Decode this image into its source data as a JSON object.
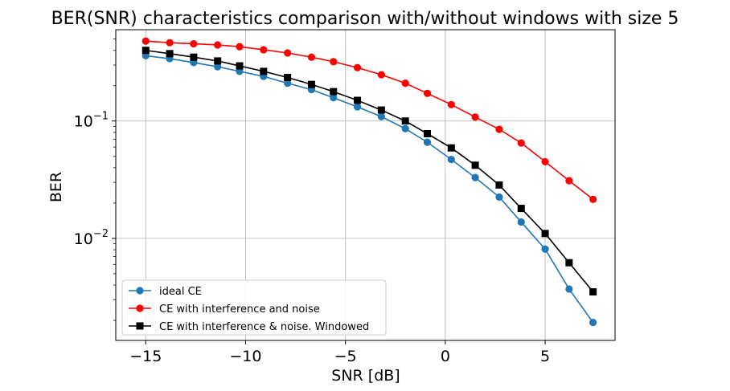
{
  "chart_data": {
    "type": "line",
    "title": "BER(SNR) characteristics comparison with/without windows with size 5",
    "xlabel": "SNR [dB]",
    "ylabel": "BER",
    "xscale": "linear",
    "yscale": "log",
    "xlim": [
      -16.5,
      8.5
    ],
    "ylim": [
      0.00135,
      0.6
    ],
    "grid": true,
    "legend_position": "lower-left",
    "x_ticks": [
      {
        "value": -15,
        "label": "−15"
      },
      {
        "value": -10,
        "label": "−10"
      },
      {
        "value": -5,
        "label": "−5"
      },
      {
        "value": 0,
        "label": "0"
      },
      {
        "value": 5,
        "label": "5"
      }
    ],
    "y_ticks": [
      {
        "value": 0.1,
        "base": "10",
        "exp": "−1"
      },
      {
        "value": 0.01,
        "base": "10",
        "exp": "−2"
      }
    ],
    "x": [
      -15,
      -13.8,
      -12.6,
      -11.4,
      -10.3,
      -9.1,
      -7.9,
      -6.7,
      -5.6,
      -4.4,
      -3.2,
      -2.0,
      -0.9,
      0.3,
      1.5,
      2.7,
      3.8,
      5.0,
      6.2,
      7.4
    ],
    "series": [
      {
        "name": "ideal CE",
        "color": "#1f77b4",
        "marker": "circle",
        "values": [
          0.36,
          0.34,
          0.315,
          0.29,
          0.265,
          0.24,
          0.21,
          0.185,
          0.158,
          0.132,
          0.109,
          0.086,
          0.066,
          0.047,
          0.033,
          0.0225,
          0.0138,
          0.0081,
          0.0037,
          0.00192
        ]
      },
      {
        "name": "CE with interference and noise",
        "color": "#ff0000",
        "marker": "circle",
        "values": [
          0.48,
          0.465,
          0.455,
          0.445,
          0.43,
          0.405,
          0.38,
          0.35,
          0.32,
          0.285,
          0.248,
          0.21,
          0.172,
          0.138,
          0.108,
          0.085,
          0.065,
          0.045,
          0.031,
          0.0215
        ]
      },
      {
        "name": "CE with interference & noise. Windowed",
        "color": "#000000",
        "marker": "square",
        "values": [
          0.4,
          0.375,
          0.35,
          0.325,
          0.295,
          0.265,
          0.235,
          0.205,
          0.178,
          0.15,
          0.124,
          0.1,
          0.078,
          0.059,
          0.042,
          0.0285,
          0.018,
          0.011,
          0.0062,
          0.0035
        ]
      }
    ]
  }
}
